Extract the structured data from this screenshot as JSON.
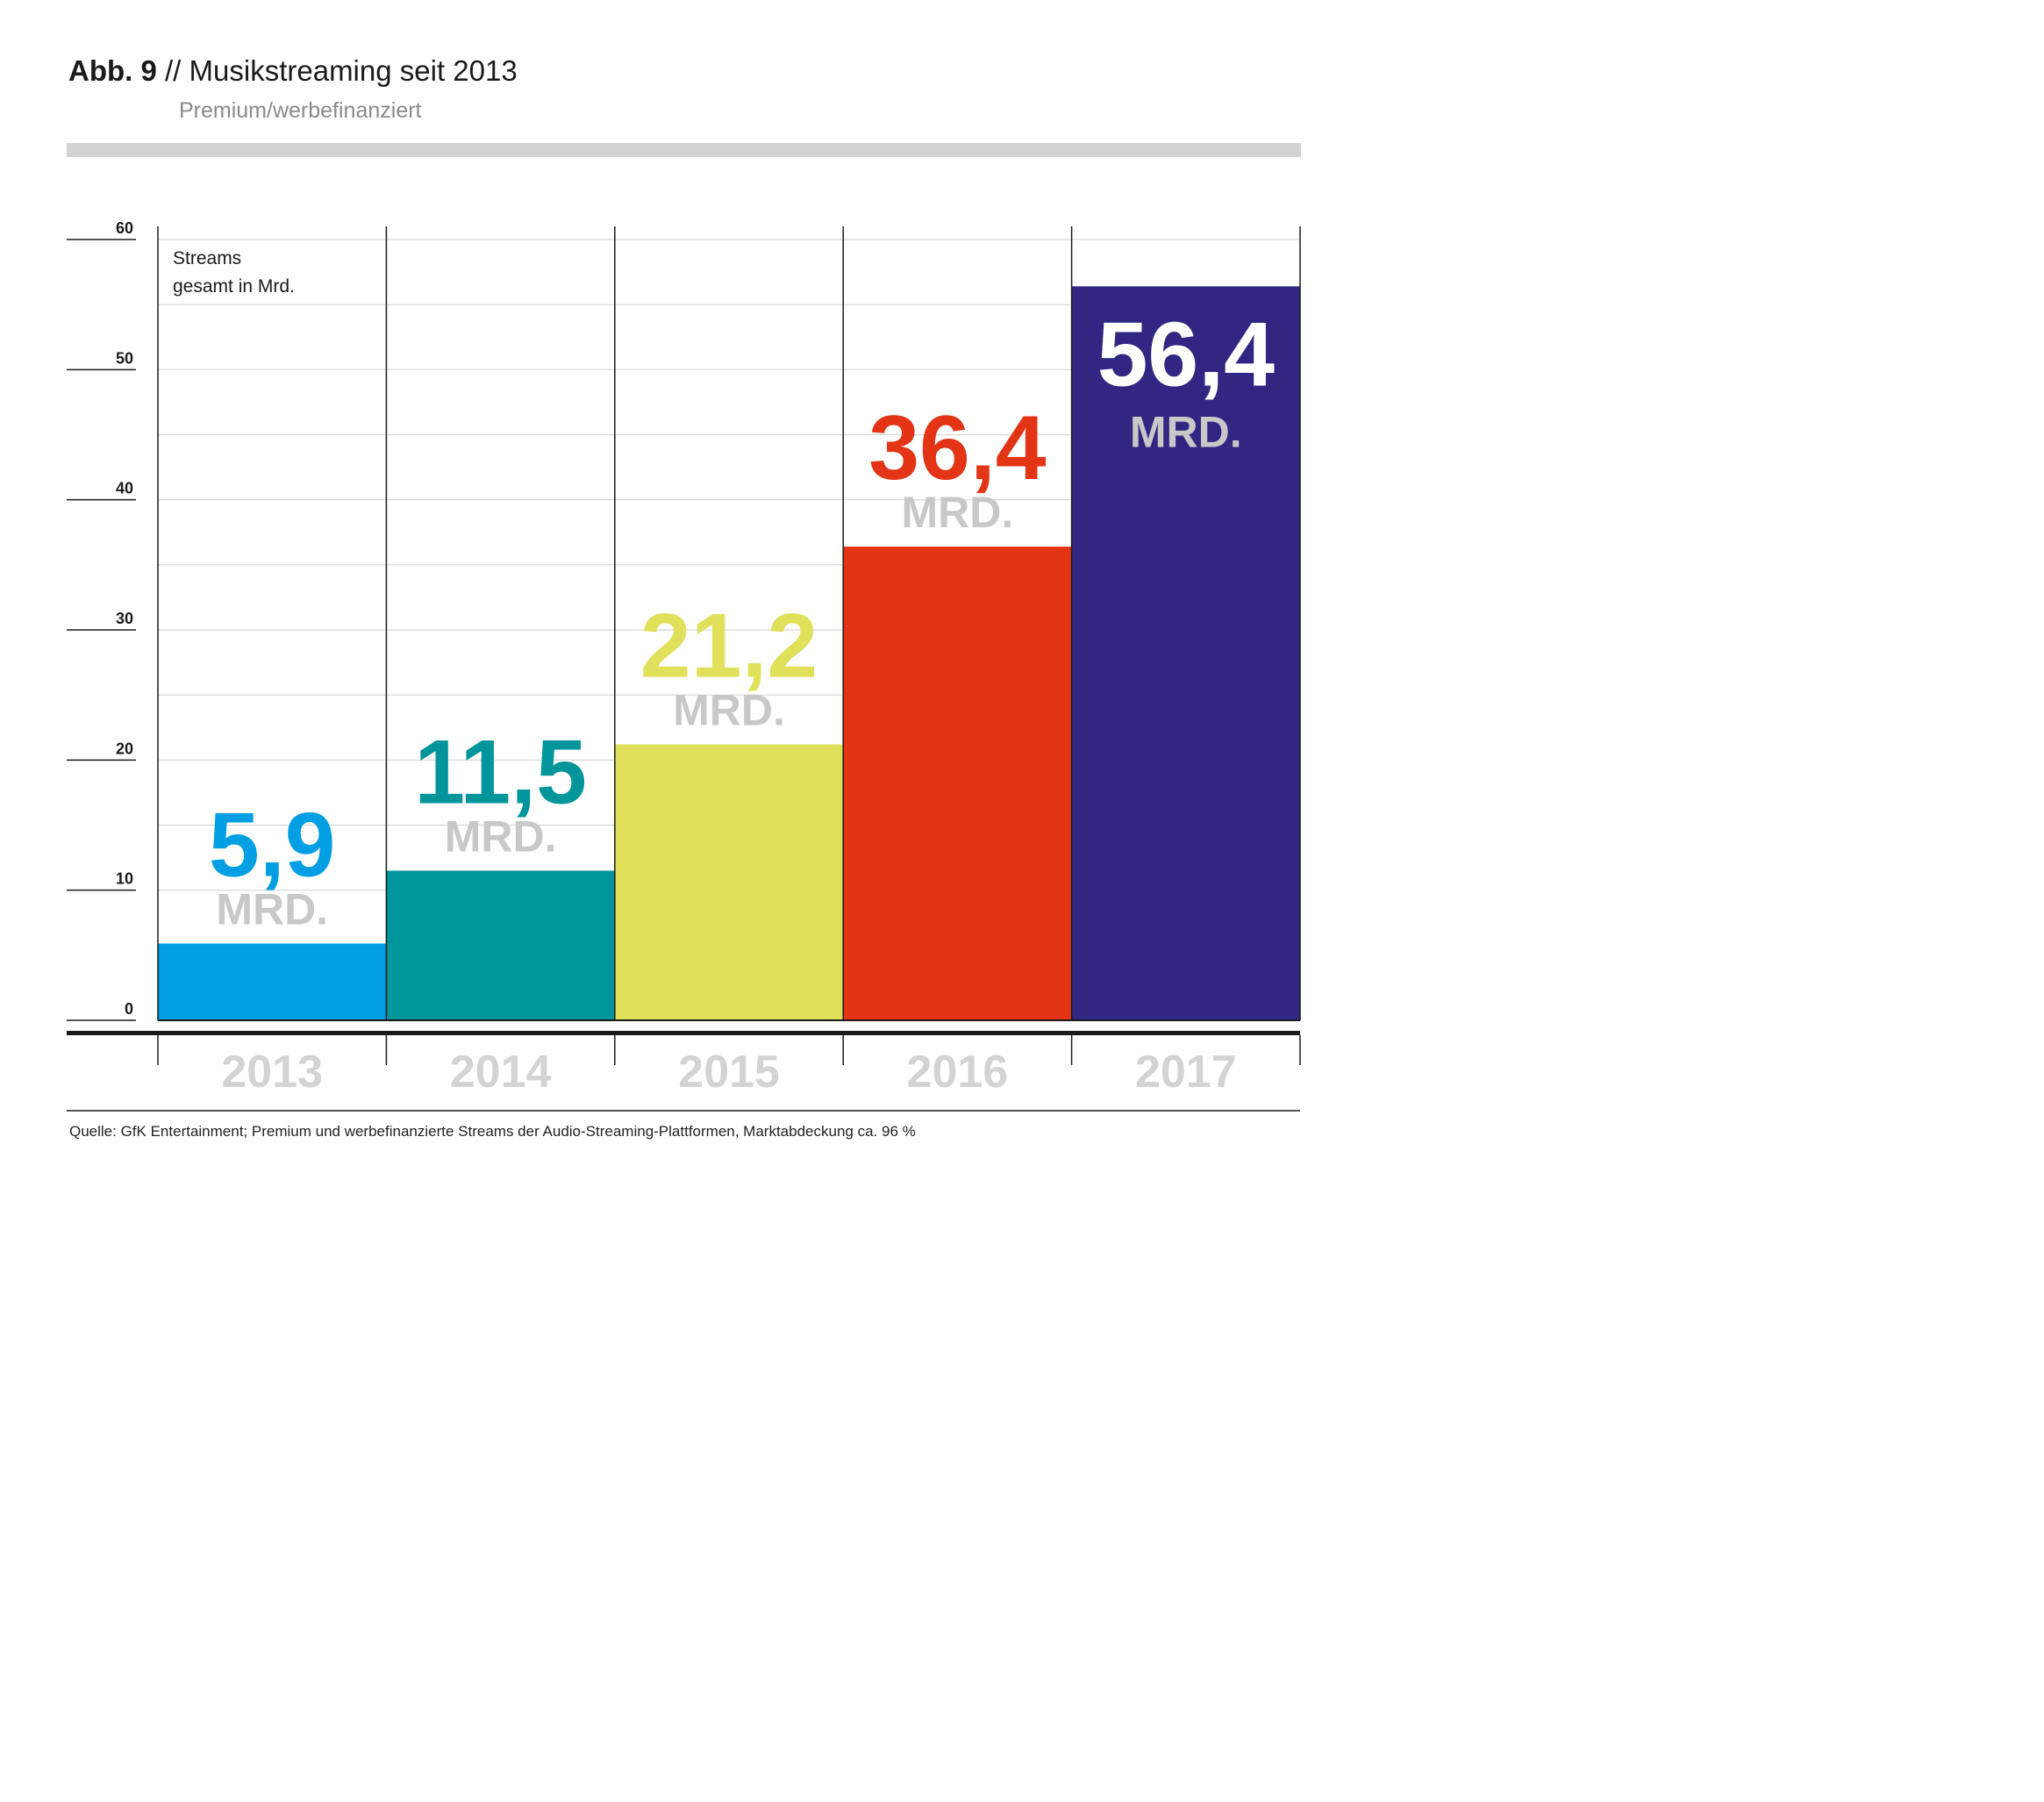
{
  "header": {
    "figure_label": "Abb. 9",
    "separator": " // ",
    "title": "Musikstreaming seit 2013",
    "subtitle": "Premium/werbefinanziert"
  },
  "source_note": "Quelle: GfK Entertainment; Premium und werbefinanzierte Streams der Audio-Streaming-Plattformen, Marktabdeckung ca. 96 %",
  "colors": {
    "grid": "#d6d6d6",
    "axis": "#1a1a1a",
    "unit_label": "#c8c8c8",
    "year_label": "#d3d3d3",
    "bar_2013": "#009fe3",
    "bar_2014": "#00959b",
    "bar_2015": "#e0e05a",
    "bar_2016": "#e33415",
    "bar_2017": "#312783"
  },
  "chart_data": {
    "type": "bar",
    "title": "Musikstreaming seit 2013",
    "ylabel": "Streams gesamt in Mrd.",
    "xlabel": "",
    "ylim": [
      0,
      60
    ],
    "yticks": [
      0,
      10,
      20,
      30,
      40,
      50,
      60
    ],
    "minor_grid_step": 5,
    "grid": true,
    "categories": [
      "2013",
      "2014",
      "2015",
      "2016",
      "2017"
    ],
    "values": [
      5.9,
      11.5,
      21.2,
      36.4,
      56.4
    ],
    "value_labels": [
      "5,9",
      "11,5",
      "21,2",
      "36,4",
      "56,4"
    ],
    "unit_label": "MRD.",
    "label_inside_last_bar": true
  }
}
